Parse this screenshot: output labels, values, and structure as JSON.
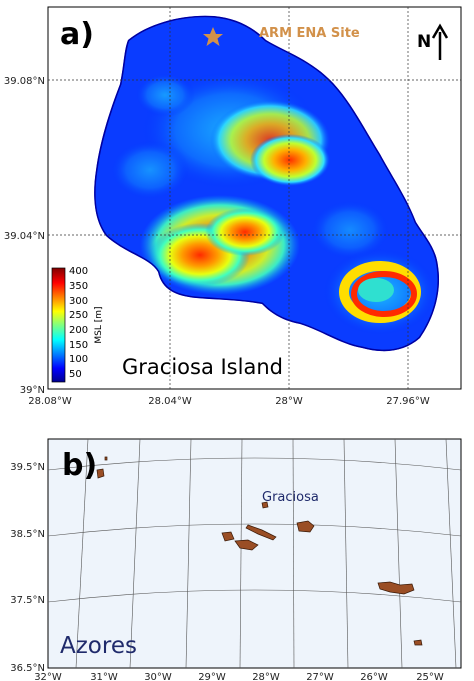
{
  "panel_a": {
    "label": "a)",
    "site_label": "ARM ENA Site",
    "north_label": "N",
    "island_title": "Graciosa Island",
    "lat_ticks": [
      "39.08°N",
      "39.04°N",
      "39°N"
    ],
    "lon_ticks": [
      "28.08°W",
      "28.04°W",
      "28°W",
      "27.96°W"
    ],
    "colorbar": {
      "label": "MSL [m]",
      "ticks": [
        "400",
        "350",
        "300",
        "250",
        "200",
        "150",
        "100",
        "50"
      ],
      "range": [
        20,
        400
      ],
      "colormap": "jet"
    },
    "site_marker_color": "#d2914a",
    "sea_color": "#ffffff"
  },
  "panel_b": {
    "label": "b)",
    "place_label": "Graciosa",
    "region_label": "Azores",
    "lat_ticks": [
      "39.5°N",
      "38.5°N",
      "37.5°N",
      "36.5°N"
    ],
    "lon_ticks": [
      "32°W",
      "31°W",
      "30°W",
      "29°W",
      "28°W",
      "27°W",
      "26°W",
      "25°W"
    ],
    "ocean_color": "#eef4fb",
    "land_color": "#9a4e25"
  }
}
